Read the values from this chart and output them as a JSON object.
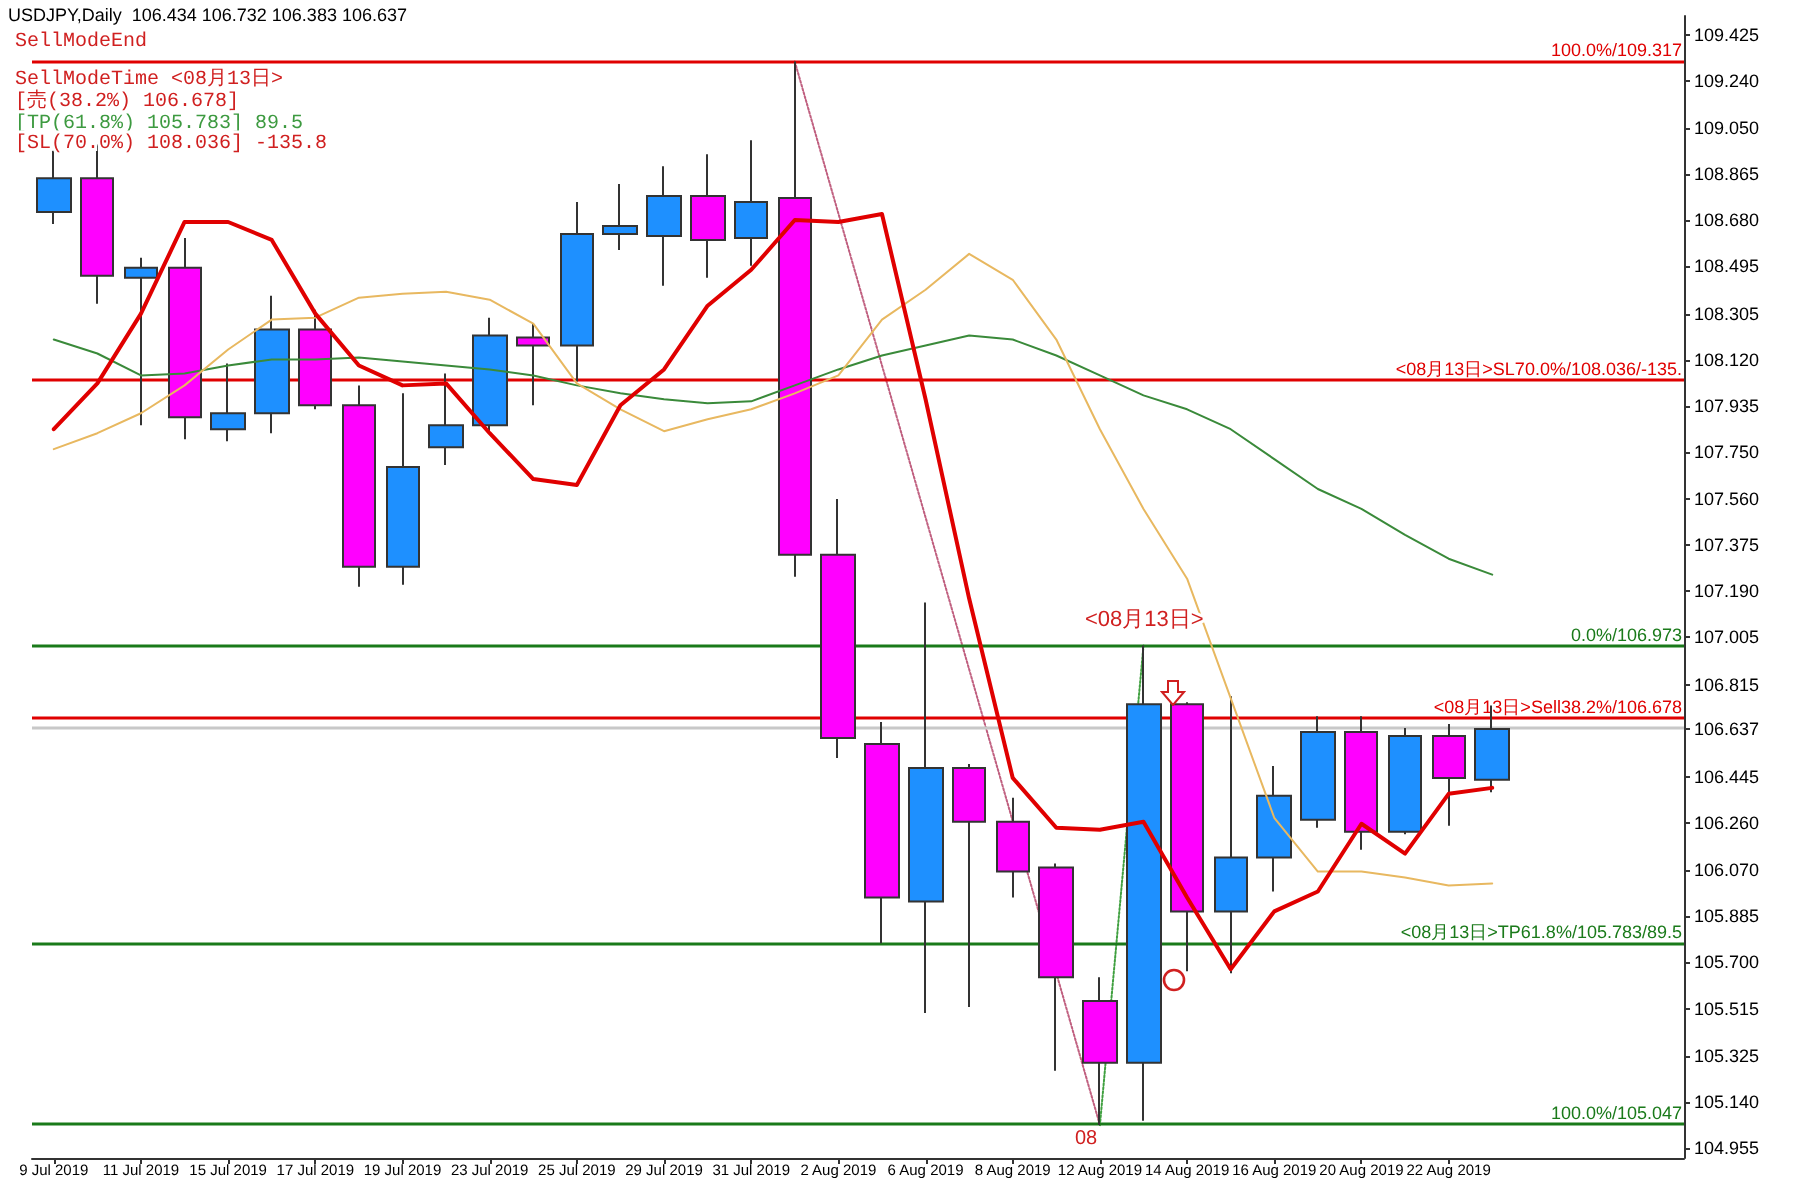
{
  "chart_data": {
    "type": "candlestick",
    "title": "USDJPY,Daily  106.434 106.732 106.383 106.637",
    "categories": [
      "9 Jul 2019",
      null,
      "11 Jul 2019",
      null,
      "15 Jul 2019",
      null,
      "17 Jul 2019",
      null,
      "19 Jul 2019",
      null,
      "23 Jul 2019",
      null,
      "25 Jul 2019",
      null,
      "29 Jul 2019",
      null,
      "31 Jul 2019",
      null,
      "2 Aug 2019",
      null,
      "6 Aug 2019",
      null,
      "8 Aug 2019",
      null,
      "12 Aug 2019",
      null,
      "14 Aug 2019",
      null,
      "16 Aug 2019",
      null,
      "20 Aug 2019",
      null,
      "22 Aug 2019",
      null
    ],
    "ohlc": [
      [
        108.713,
        108.961,
        108.665,
        108.849
      ],
      [
        108.849,
        108.985,
        108.345,
        108.457
      ],
      [
        108.449,
        108.529,
        107.857,
        108.489
      ],
      [
        108.489,
        108.609,
        107.801,
        107.889
      ],
      [
        107.841,
        108.105,
        107.793,
        107.905
      ],
      [
        107.905,
        108.377,
        107.825,
        108.241
      ],
      [
        108.241,
        108.321,
        107.921,
        107.937
      ],
      [
        107.937,
        108.017,
        107.209,
        107.289
      ],
      [
        107.289,
        107.985,
        107.217,
        107.689
      ],
      [
        107.769,
        108.065,
        107.697,
        107.857
      ],
      [
        107.857,
        108.289,
        107.825,
        108.217
      ],
      [
        108.209,
        108.265,
        107.937,
        108.177
      ],
      [
        108.177,
        108.753,
        108.033,
        108.625
      ],
      [
        108.625,
        108.825,
        108.561,
        108.657
      ],
      [
        108.617,
        108.897,
        108.417,
        108.777
      ],
      [
        108.777,
        108.945,
        108.449,
        108.601
      ],
      [
        108.609,
        109.001,
        108.497,
        108.753
      ],
      [
        108.769,
        109.317,
        107.249,
        107.337
      ],
      [
        107.337,
        107.561,
        106.521,
        106.601
      ],
      [
        106.577,
        106.665,
        105.777,
        105.961
      ],
      [
        105.945,
        107.145,
        105.497,
        106.481
      ],
      [
        106.481,
        106.497,
        105.521,
        106.265
      ],
      [
        106.265,
        106.361,
        105.961,
        106.065
      ],
      [
        106.081,
        106.097,
        105.265,
        105.641
      ],
      [
        105.545,
        105.641,
        105.047,
        105.297
      ],
      [
        105.297,
        106.973,
        105.065,
        106.737
      ],
      [
        106.737,
        106.745,
        105.665,
        105.905
      ],
      [
        105.905,
        106.769,
        105.657,
        106.121
      ],
      [
        106.121,
        106.489,
        105.985,
        106.369
      ],
      [
        106.273,
        106.689,
        106.241,
        106.625
      ],
      [
        106.625,
        106.689,
        106.153,
        106.225
      ],
      [
        106.225,
        106.641,
        106.215,
        106.609
      ],
      [
        106.609,
        106.657,
        106.249,
        106.441
      ],
      [
        106.434,
        106.732,
        106.383,
        106.637
      ]
    ],
    "colors": [
      "#1e90ff",
      "#ff00ff",
      "#1e90ff",
      "#ff00ff",
      "#1e90ff",
      "#1e90ff",
      "#ff00ff",
      "#ff00ff",
      "#1e90ff",
      "#1e90ff",
      "#1e90ff",
      "#ff00ff",
      "#1e90ff",
      "#1e90ff",
      "#1e90ff",
      "#ff00ff",
      "#1e90ff",
      "#ff00ff",
      "#ff00ff",
      "#ff00ff",
      "#1e90ff",
      "#ff00ff",
      "#ff00ff",
      "#ff00ff",
      "#ff00ff",
      "#1e90ff",
      "#ff00ff",
      "#1e90ff",
      "#1e90ff",
      "#1e90ff",
      "#ff00ff",
      "#1e90ff",
      "#ff00ff",
      "#1e90ff"
    ],
    "series": [
      {
        "type": "line",
        "color": "#3a8a3a",
        "values": [
          108.201,
          108.145,
          108.057,
          108.065,
          108.097,
          108.121,
          108.121,
          108.129,
          108.113,
          108.097,
          108.081,
          108.057,
          108.017,
          107.985,
          107.961,
          107.945,
          107.953,
          108.017,
          108.081,
          108.137,
          108.177,
          108.217,
          108.201,
          108.137,
          108.057,
          107.977,
          107.921,
          107.841,
          107.721,
          107.601,
          107.521,
          107.417,
          107.321,
          107.257
        ]
      },
      {
        "type": "line",
        "color": "#e8b860",
        "values": [
          107.761,
          107.825,
          107.905,
          108.017,
          108.161,
          108.281,
          108.289,
          108.369,
          108.385,
          108.393,
          108.361,
          108.265,
          108.025,
          107.921,
          107.833,
          107.881,
          107.921,
          107.985,
          108.057,
          108.281,
          108.401,
          108.545,
          108.441,
          108.201,
          107.841,
          107.521,
          107.241,
          106.761,
          106.281,
          106.065,
          106.065,
          106.041,
          106.009,
          106.017
        ]
      },
      {
        "type": "line",
        "color": "#e00000",
        "values": [
          107.841,
          108.025,
          108.305,
          108.673,
          108.673,
          108.601,
          108.305,
          108.097,
          108.017,
          108.025,
          107.825,
          107.641,
          107.617,
          107.937,
          108.081,
          108.337,
          108.481,
          108.681,
          108.673,
          108.705,
          107.961,
          107.161,
          106.441,
          106.241,
          106.233,
          106.265,
          105.961,
          105.673,
          105.905,
          105.985,
          106.257,
          106.137,
          106.377,
          106.401
        ]
      },
      {
        "type": "line",
        "color": "#c06080",
        "line_style": "dotted",
        "values": [
          null,
          null,
          null,
          null,
          null,
          null,
          null,
          null,
          null,
          null,
          null,
          null,
          null,
          null,
          null,
          null,
          null,
          109.317,
          null,
          null,
          null,
          null,
          null,
          null,
          105.047,
          null,
          null,
          null,
          null,
          null,
          null,
          null,
          null,
          null
        ]
      },
      {
        "type": "line",
        "color": "#40a040",
        "line_style": "dotted",
        "values": [
          null,
          null,
          null,
          null,
          null,
          null,
          null,
          null,
          null,
          null,
          null,
          null,
          null,
          null,
          null,
          null,
          null,
          null,
          null,
          null,
          null,
          null,
          null,
          null,
          105.047,
          106.973,
          null,
          null,
          null,
          null,
          null,
          null,
          null,
          null
        ]
      }
    ],
    "marker": "none",
    "ylim": [
      104.915,
      109.5
    ],
    "yticks": [
      104.955,
      {
        "value": 105.14,
        "label": "105.140"
      },
      105.325,
      105.515,
      {
        "value": 105.7,
        "label": "105.700"
      },
      105.885,
      {
        "value": 106.07,
        "label": "106.070"
      },
      {
        "value": 106.26,
        "label": "106.260"
      },
      106.445,
      106.637,
      106.815,
      107.005,
      {
        "value": 107.19,
        "label": "107.190"
      },
      107.375,
      {
        "value": 107.56,
        "label": "107.560"
      },
      {
        "value": 107.75,
        "label": "107.750"
      },
      107.935,
      {
        "value": 108.12,
        "label": "108.120"
      },
      108.305,
      108.495,
      {
        "value": 108.68,
        "label": "108.680"
      },
      108.865,
      {
        "value": 109.05,
        "label": "109.050"
      },
      {
        "value": 109.24,
        "label": "109.240"
      },
      109.425
    ],
    "ref_lines": [
      {
        "axis": "y",
        "value": 109.317,
        "label": "100.0%/109.317",
        "color": "#e00000"
      },
      {
        "axis": "y",
        "value": 108.036,
        "label": "<08月13日>SL70.0%/108.036/-135.",
        "color": "#e00000"
      },
      {
        "axis": "y",
        "value": 106.973,
        "label": "0.0%/106.973",
        "color": "#1a7a1a"
      },
      {
        "axis": "y",
        "value": 106.678,
        "label": "<08月13日>Sell38.2%/106.678",
        "color": "#e00000"
      },
      {
        "axis": "y",
        "value": 106.637,
        "label": null,
        "color": "#c8c8c8"
      },
      {
        "axis": "y",
        "value": 105.783,
        "label": "<08月13日>TP61.8%/105.783/89.5",
        "color": "#1a7a1a"
      },
      {
        "axis": "y",
        "value": 105.047,
        "label": "100.0%/105.047",
        "color": "#1a7a1a"
      }
    ],
    "annotations": [
      "SellModeEnd",
      "SellModeTime <08月13日>",
      "[売(38.2%) 106.678]",
      "[TP(61.8%) 105.783] 89.5",
      "[SL(70.0%) 108.036] -135.8",
      "<08月13日>",
      "08"
    ]
  }
}
